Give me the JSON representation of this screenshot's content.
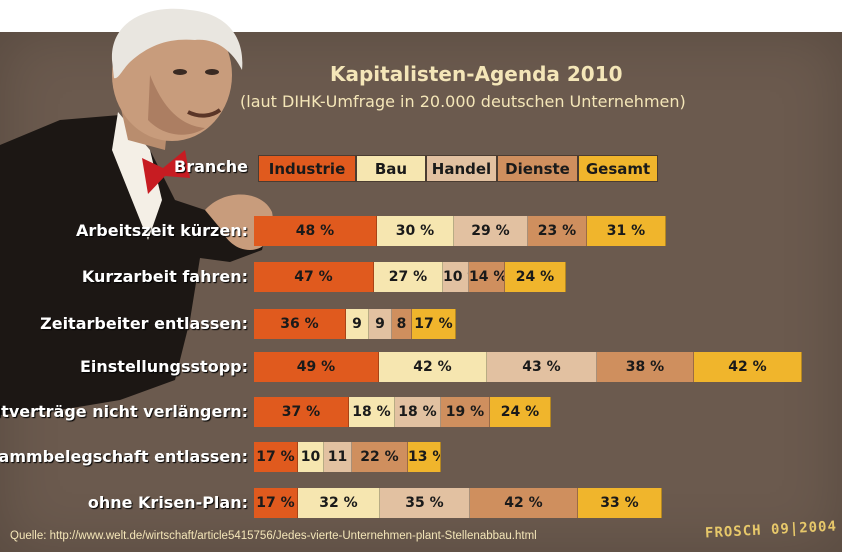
{
  "chart_data": {
    "type": "bar",
    "stacked": true,
    "orientation": "horizontal",
    "title": "Kapitalisten-Agenda 2010",
    "subtitle": "(laut DIHK-Umfrage in 20.000 deutschen Unternehmen)",
    "legend_title": "Branche",
    "legend_position": "top",
    "series": [
      {
        "name": "Industrie",
        "color": "#e05a1e",
        "values": [
          48,
          47,
          36,
          49,
          37,
          17,
          17
        ]
      },
      {
        "name": "Bau",
        "color": "#f6e6b0",
        "values": [
          30,
          27,
          9,
          42,
          18,
          10,
          32
        ]
      },
      {
        "name": "Handel",
        "color": "#e2c1a1",
        "values": [
          29,
          10,
          9,
          43,
          18,
          11,
          35
        ]
      },
      {
        "name": "Dienste",
        "color": "#cf8f5e",
        "values": [
          23,
          14,
          8,
          38,
          19,
          22,
          42
        ]
      },
      {
        "name": "Gesamt",
        "color": "#f0b52c",
        "values": [
          31,
          24,
          17,
          42,
          24,
          13,
          33
        ]
      }
    ],
    "categories": [
      "Arbeitszeit kürzen:",
      "Kurzarbeit fahren:",
      "Zeitarbeiter entlassen:",
      "Einstellungsstopp:",
      "Zeitverträge nicht verlängern:",
      "Stammbelegschaft entlassen:",
      "ohne Krisen-Plan:"
    ],
    "value_labels": [
      [
        "48 %",
        "30 %",
        "29 %",
        "23 %",
        "31 %"
      ],
      [
        "47 %",
        "27 %",
        "10 %",
        "14 %",
        "24 %"
      ],
      [
        "36 %",
        "9",
        "9",
        "8",
        "17 %"
      ],
      [
        "49 %",
        "42 %",
        "43 %",
        "38 %",
        "42 %"
      ],
      [
        "37 %",
        "18 %",
        "18 %",
        "19 %",
        "24 %"
      ],
      [
        "17 %",
        "10",
        "11",
        "22 %",
        "13 %"
      ],
      [
        "17 %",
        "32 %",
        "35 %",
        "42 %",
        "33 %"
      ]
    ]
  },
  "source": "Quelle: http://www.welt.de/wirtschaft/article5415756/Jedes-vierte-Unternehmen-plant-Stellenabbau.html",
  "signature": "FROSCH 09|2004"
}
